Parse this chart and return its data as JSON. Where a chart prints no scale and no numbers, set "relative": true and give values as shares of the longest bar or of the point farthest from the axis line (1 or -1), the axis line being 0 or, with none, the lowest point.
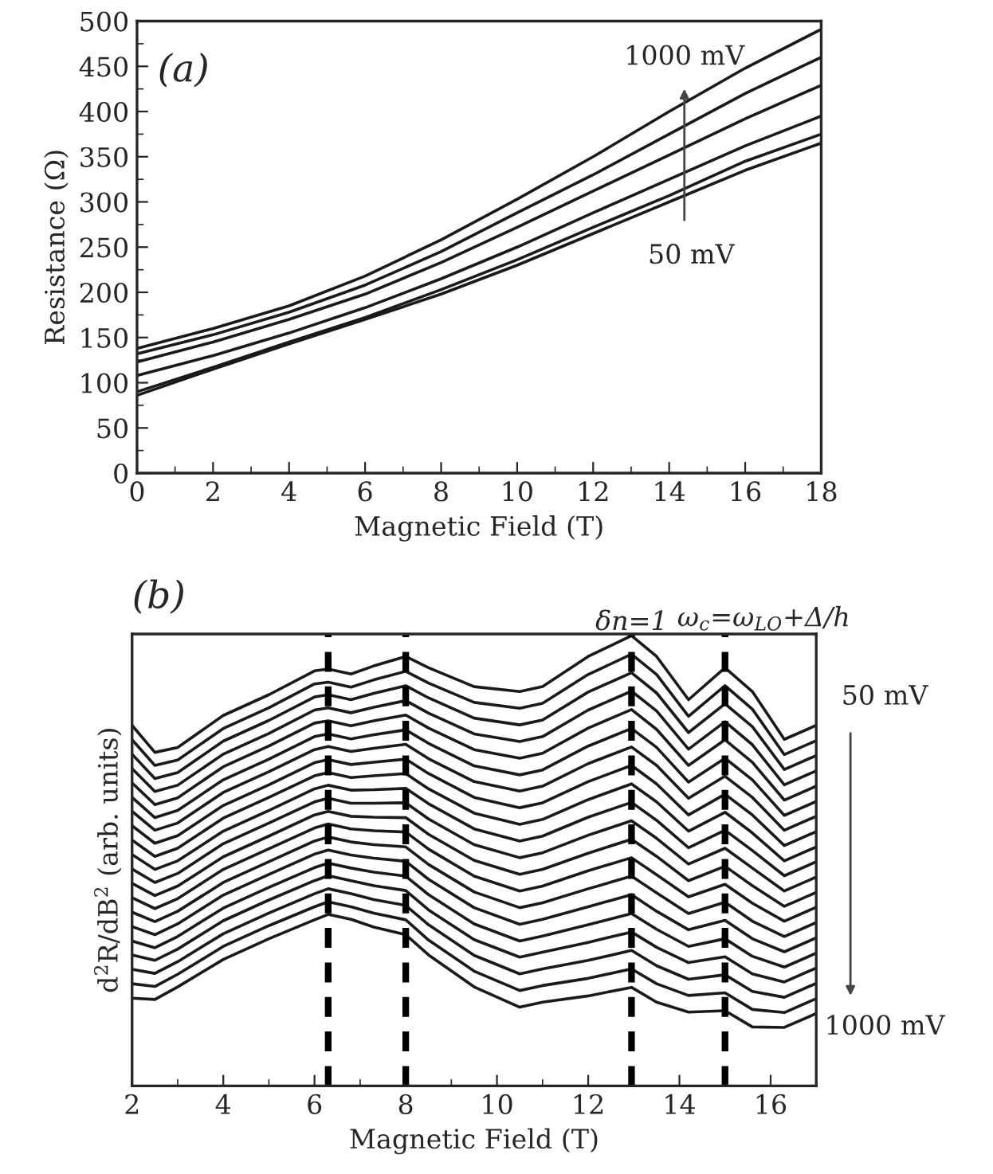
{
  "chart_data": [
    {
      "type": "line",
      "title": "(a)",
      "xlabel": "Magnetic Field (T)",
      "ylabel": "Resistance (Ω)",
      "xlim": [
        0,
        18
      ],
      "ylim": [
        0,
        500
      ],
      "xticks": [
        0,
        2,
        4,
        6,
        8,
        10,
        12,
        14,
        16,
        18
      ],
      "yticks": [
        0,
        50,
        100,
        150,
        200,
        250,
        300,
        350,
        400,
        450,
        500
      ],
      "grid": false,
      "legend": false,
      "x": [
        0,
        2,
        4,
        6,
        8,
        10,
        12,
        14,
        16,
        18
      ],
      "annotations": [
        "1000 mV",
        "50 mV"
      ],
      "series": [
        {
          "color": "#1a1a1a",
          "values": [
            138,
            160,
            185,
            218,
            258,
            303,
            350,
            400,
            448,
            491
          ]
        },
        {
          "color": "#1a1a1a",
          "values": [
            132,
            153,
            178,
            208,
            245,
            288,
            330,
            375,
            420,
            460
          ]
        },
        {
          "color": "#1a1a1a",
          "values": [
            123,
            145,
            170,
            198,
            233,
            272,
            312,
            352,
            392,
            429
          ]
        },
        {
          "color": "#1a1a1a",
          "values": [
            108,
            130,
            155,
            183,
            215,
            250,
            288,
            325,
            362,
            395
          ]
        },
        {
          "color": "#1a1a1a",
          "values": [
            90,
            117,
            145,
            172,
            203,
            236,
            272,
            307,
            345,
            375
          ]
        },
        {
          "color": "#1a1a1a",
          "values": [
            86,
            115,
            143,
            170,
            198,
            230,
            265,
            300,
            335,
            365
          ]
        }
      ]
    },
    {
      "type": "line",
      "title": "(b)",
      "xlabel": "Magnetic Field (T)",
      "ylabel": "d$^{2}$R/dB$^{2}$ (arb. units)",
      "xlim": [
        2,
        17
      ],
      "xticks": [
        2,
        4,
        6,
        8,
        10,
        12,
        14,
        16
      ],
      "relative": true,
      "tick_labels": "x",
      "grid": false,
      "legend": false,
      "x": [
        2,
        2.5,
        3,
        4,
        5,
        6,
        6.3,
        6.8,
        7.3,
        8,
        8.5,
        9.5,
        10.5,
        11,
        12,
        12.95,
        13.5,
        14.2,
        15,
        15.6,
        16.3,
        17
      ],
      "annotations": [
        "δn=1",
        "50 mV",
        "1000 mV"
      ],
      "ref_lines": [
        {
          "axis": "x",
          "value": 6.3,
          "label": null,
          "color": "#000000",
          "line_style": "dashed"
        },
        {
          "axis": "x",
          "value": 8.0,
          "label": null,
          "color": "#000000",
          "line_style": "dashed"
        },
        {
          "axis": "x",
          "value": 12.95,
          "label": null,
          "color": "#000000",
          "line_style": "dashed"
        },
        {
          "axis": "x",
          "value": 15.0,
          "label": "ω$_{c}$=ω$_{LO}$+Δ/h",
          "color": "#000000",
          "line_style": "dashed"
        }
      ],
      "series": [
        {
          "color": "#1a1a1a",
          "values": [
            0.801,
            0.741,
            0.752,
            0.823,
            0.869,
            0.922,
            0.926,
            0.915,
            0.933,
            0.954,
            0.929,
            0.887,
            0.876,
            0.887,
            0.954,
            1.0,
            0.954,
            0.858,
            0.929,
            0.876,
            0.77,
            0.801
          ]
        },
        {
          "color": "#1a1a1a",
          "values": [
            0.769,
            0.712,
            0.724,
            0.794,
            0.84,
            0.893,
            0.897,
            0.886,
            0.902,
            0.921,
            0.895,
            0.852,
            0.839,
            0.85,
            0.914,
            0.959,
            0.914,
            0.821,
            0.889,
            0.837,
            0.736,
            0.767
          ]
        },
        {
          "color": "#1a1a1a",
          "values": [
            0.737,
            0.683,
            0.696,
            0.766,
            0.812,
            0.864,
            0.869,
            0.858,
            0.872,
            0.889,
            0.862,
            0.817,
            0.802,
            0.813,
            0.875,
            0.918,
            0.873,
            0.785,
            0.849,
            0.798,
            0.703,
            0.734
          ]
        },
        {
          "color": "#1a1a1a",
          "values": [
            0.705,
            0.654,
            0.668,
            0.737,
            0.783,
            0.835,
            0.84,
            0.829,
            0.841,
            0.856,
            0.828,
            0.782,
            0.765,
            0.776,
            0.835,
            0.877,
            0.833,
            0.748,
            0.809,
            0.758,
            0.669,
            0.7
          ]
        },
        {
          "color": "#1a1a1a",
          "values": [
            0.673,
            0.625,
            0.64,
            0.709,
            0.755,
            0.806,
            0.811,
            0.8,
            0.811,
            0.824,
            0.795,
            0.747,
            0.728,
            0.739,
            0.795,
            0.836,
            0.792,
            0.712,
            0.769,
            0.719,
            0.635,
            0.666
          ]
        },
        {
          "color": "#1a1a1a",
          "values": [
            0.641,
            0.596,
            0.612,
            0.68,
            0.726,
            0.776,
            0.782,
            0.771,
            0.78,
            0.791,
            0.761,
            0.711,
            0.691,
            0.702,
            0.755,
            0.794,
            0.752,
            0.675,
            0.728,
            0.68,
            0.601,
            0.632
          ]
        },
        {
          "color": "#1a1a1a",
          "values": [
            0.61,
            0.568,
            0.584,
            0.652,
            0.698,
            0.747,
            0.754,
            0.743,
            0.75,
            0.759,
            0.727,
            0.676,
            0.655,
            0.666,
            0.716,
            0.753,
            0.712,
            0.639,
            0.688,
            0.641,
            0.568,
            0.599
          ]
        },
        {
          "color": "#1a1a1a",
          "values": [
            0.578,
            0.539,
            0.556,
            0.623,
            0.669,
            0.718,
            0.725,
            0.714,
            0.719,
            0.726,
            0.694,
            0.641,
            0.618,
            0.629,
            0.676,
            0.712,
            0.671,
            0.602,
            0.648,
            0.602,
            0.534,
            0.565
          ]
        },
        {
          "color": "#1a1a1a",
          "values": [
            0.546,
            0.51,
            0.528,
            0.595,
            0.641,
            0.689,
            0.696,
            0.685,
            0.689,
            0.694,
            0.66,
            0.606,
            0.581,
            0.592,
            0.636,
            0.671,
            0.631,
            0.566,
            0.608,
            0.562,
            0.5,
            0.531
          ]
        },
        {
          "color": "#1a1a1a",
          "values": [
            0.514,
            0.481,
            0.5,
            0.566,
            0.612,
            0.66,
            0.668,
            0.657,
            0.658,
            0.661,
            0.627,
            0.571,
            0.544,
            0.555,
            0.597,
            0.63,
            0.59,
            0.529,
            0.568,
            0.523,
            0.467,
            0.498
          ]
        },
        {
          "color": "#1a1a1a",
          "values": [
            0.482,
            0.452,
            0.472,
            0.538,
            0.584,
            0.631,
            0.639,
            0.628,
            0.628,
            0.629,
            0.593,
            0.536,
            0.507,
            0.518,
            0.557,
            0.589,
            0.55,
            0.493,
            0.528,
            0.484,
            0.433,
            0.464
          ]
        },
        {
          "color": "#1a1a1a",
          "values": [
            0.45,
            0.423,
            0.444,
            0.509,
            0.555,
            0.602,
            0.61,
            0.599,
            0.597,
            0.596,
            0.559,
            0.501,
            0.47,
            0.481,
            0.517,
            0.548,
            0.51,
            0.456,
            0.488,
            0.445,
            0.399,
            0.43
          ]
        },
        {
          "color": "#1a1a1a",
          "values": [
            0.418,
            0.394,
            0.416,
            0.481,
            0.527,
            0.573,
            0.582,
            0.571,
            0.567,
            0.564,
            0.526,
            0.466,
            0.433,
            0.444,
            0.478,
            0.507,
            0.469,
            0.42,
            0.448,
            0.406,
            0.366,
            0.397
          ]
        },
        {
          "color": "#1a1a1a",
          "values": [
            0.386,
            0.365,
            0.388,
            0.452,
            0.498,
            0.544,
            0.553,
            0.542,
            0.536,
            0.531,
            0.492,
            0.431,
            0.396,
            0.407,
            0.438,
            0.466,
            0.429,
            0.383,
            0.408,
            0.366,
            0.332,
            0.363
          ]
        },
        {
          "color": "#1a1a1a",
          "values": [
            0.354,
            0.336,
            0.36,
            0.424,
            0.47,
            0.515,
            0.524,
            0.513,
            0.506,
            0.499,
            0.459,
            0.396,
            0.359,
            0.37,
            0.398,
            0.425,
            0.388,
            0.347,
            0.368,
            0.327,
            0.298,
            0.329
          ]
        },
        {
          "color": "#1a1a1a",
          "values": [
            0.322,
            0.307,
            0.332,
            0.395,
            0.441,
            0.485,
            0.495,
            0.484,
            0.475,
            0.466,
            0.425,
            0.36,
            0.322,
            0.333,
            0.358,
            0.383,
            0.348,
            0.31,
            0.327,
            0.288,
            0.264,
            0.295
          ]
        },
        {
          "color": "#1a1a1a",
          "values": [
            0.291,
            0.279,
            0.304,
            0.367,
            0.413,
            0.456,
            0.467,
            0.456,
            0.445,
            0.434,
            0.391,
            0.325,
            0.286,
            0.297,
            0.319,
            0.342,
            0.308,
            0.274,
            0.287,
            0.249,
            0.231,
            0.262
          ]
        },
        {
          "color": "#1a1a1a",
          "values": [
            0.259,
            0.25,
            0.276,
            0.338,
            0.384,
            0.427,
            0.438,
            0.427,
            0.414,
            0.401,
            0.358,
            0.29,
            0.249,
            0.26,
            0.279,
            0.301,
            0.267,
            0.237,
            0.247,
            0.21,
            0.197,
            0.228
          ]
        },
        {
          "color": "#1a1a1a",
          "values": [
            0.227,
            0.221,
            0.248,
            0.31,
            0.356,
            0.398,
            0.409,
            0.398,
            0.384,
            0.369,
            0.324,
            0.255,
            0.212,
            0.223,
            0.239,
            0.26,
            0.227,
            0.201,
            0.207,
            0.17,
            0.163,
            0.194
          ]
        },
        {
          "color": "#1a1a1a",
          "values": [
            0.195,
            0.192,
            0.22,
            0.281,
            0.327,
            0.369,
            0.381,
            0.37,
            0.353,
            0.336,
            0.291,
            0.22,
            0.175,
            0.186,
            0.2,
            0.219,
            0.186,
            0.164,
            0.167,
            0.131,
            0.13,
            0.161
          ]
        }
      ]
    }
  ]
}
